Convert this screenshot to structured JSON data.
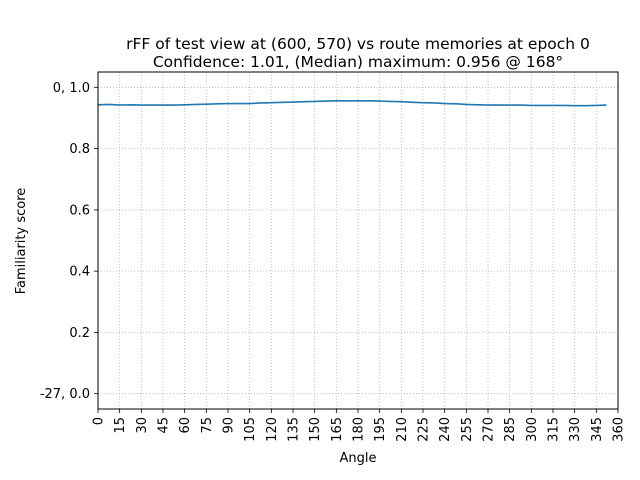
{
  "chart_data": {
    "type": "line",
    "title_line1": "rFF of test view at (600, 570) vs route memories at epoch 0",
    "title_line2": "Confidence: 1.01, (Median) maximum: 0.956 @ 168°",
    "xlabel": "Angle",
    "ylabel": "Familiarity score",
    "xlim": [
      0,
      360
    ],
    "ylim": [
      -0.05,
      1.05
    ],
    "x_ticks": [
      0,
      15,
      30,
      45,
      60,
      75,
      90,
      105,
      120,
      135,
      150,
      165,
      180,
      195,
      210,
      225,
      240,
      255,
      270,
      285,
      300,
      315,
      330,
      345,
      360
    ],
    "y_ticks": [
      {
        "value": 0.0,
        "label": "-27, 0.0"
      },
      {
        "value": 0.2,
        "label": "0.2"
      },
      {
        "value": 0.4,
        "label": "0.4"
      },
      {
        "value": 0.6,
        "label": "0.6"
      },
      {
        "value": 0.8,
        "label": "0.8"
      },
      {
        "value": 1.0,
        "label": "0, 1.0"
      }
    ],
    "grid": true,
    "line_color": "#1f77b4",
    "series": [
      {
        "x": [
          0,
          8,
          15,
          23,
          30,
          38,
          45,
          53,
          60,
          68,
          75,
          83,
          90,
          98,
          105,
          113,
          120,
          128,
          135,
          143,
          150,
          158,
          165,
          173,
          180,
          188,
          195,
          203,
          210,
          218,
          225,
          233,
          240,
          248,
          255,
          263,
          270,
          278,
          285,
          293,
          300,
          308,
          315,
          323,
          330,
          338,
          345,
          352
        ],
        "y": [
          0.943,
          0.944,
          0.942,
          0.943,
          0.942,
          0.942,
          0.942,
          0.942,
          0.943,
          0.944,
          0.945,
          0.946,
          0.947,
          0.947,
          0.947,
          0.949,
          0.95,
          0.951,
          0.952,
          0.953,
          0.954,
          0.955,
          0.956,
          0.956,
          0.956,
          0.956,
          0.955,
          0.954,
          0.953,
          0.951,
          0.95,
          0.949,
          0.947,
          0.946,
          0.944,
          0.943,
          0.942,
          0.942,
          0.942,
          0.942,
          0.941,
          0.941,
          0.941,
          0.941,
          0.94,
          0.94,
          0.941,
          0.942
        ]
      }
    ]
  }
}
